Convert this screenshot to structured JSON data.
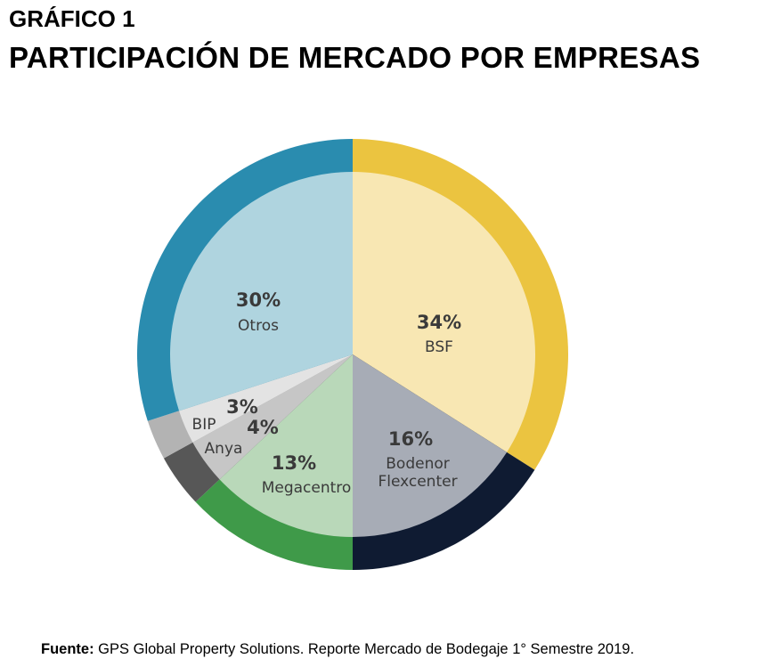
{
  "header": {
    "pretitle": "GRÁFICO 1",
    "title": "PARTICIPACIÓN DE MERCADO POR EMPRESAS"
  },
  "chart_data": {
    "type": "pie",
    "title": "PARTICIPACIÓN DE MERCADO POR EMPRESAS",
    "slices": [
      {
        "label": "BSF",
        "value": 34,
        "value_label": "34%",
        "color": "#EBC440",
        "inner_color": "#F8E7B3"
      },
      {
        "label": "Bodenor Flexcenter",
        "label_lines": [
          "Bodenor",
          "Flexcenter"
        ],
        "value": 16,
        "value_label": "16%",
        "color": "#0F1B32",
        "inner_color": "#A7ACB6"
      },
      {
        "label": "Megacentro",
        "value": 13,
        "value_label": "13%",
        "color": "#3F9A49",
        "inner_color": "#B9D8B9"
      },
      {
        "label": "Anya",
        "value": 4,
        "value_label": "4%",
        "color": "#575757",
        "inner_color": "#C6C6C6"
      },
      {
        "label": "BIP",
        "value": 3,
        "value_label": "3%",
        "color": "#B3B3B3",
        "inner_color": "#E3E3E3"
      },
      {
        "label": "Otros",
        "value": 30,
        "value_label": "30%",
        "color": "#2A8CAF",
        "inner_color": "#AFD4DF"
      }
    ]
  },
  "footer": {
    "source_label": "Fuente:",
    "source_text": " GPS Global Property Solutions. Reporte Mercado de Bodegaje 1° Semestre 2019."
  }
}
